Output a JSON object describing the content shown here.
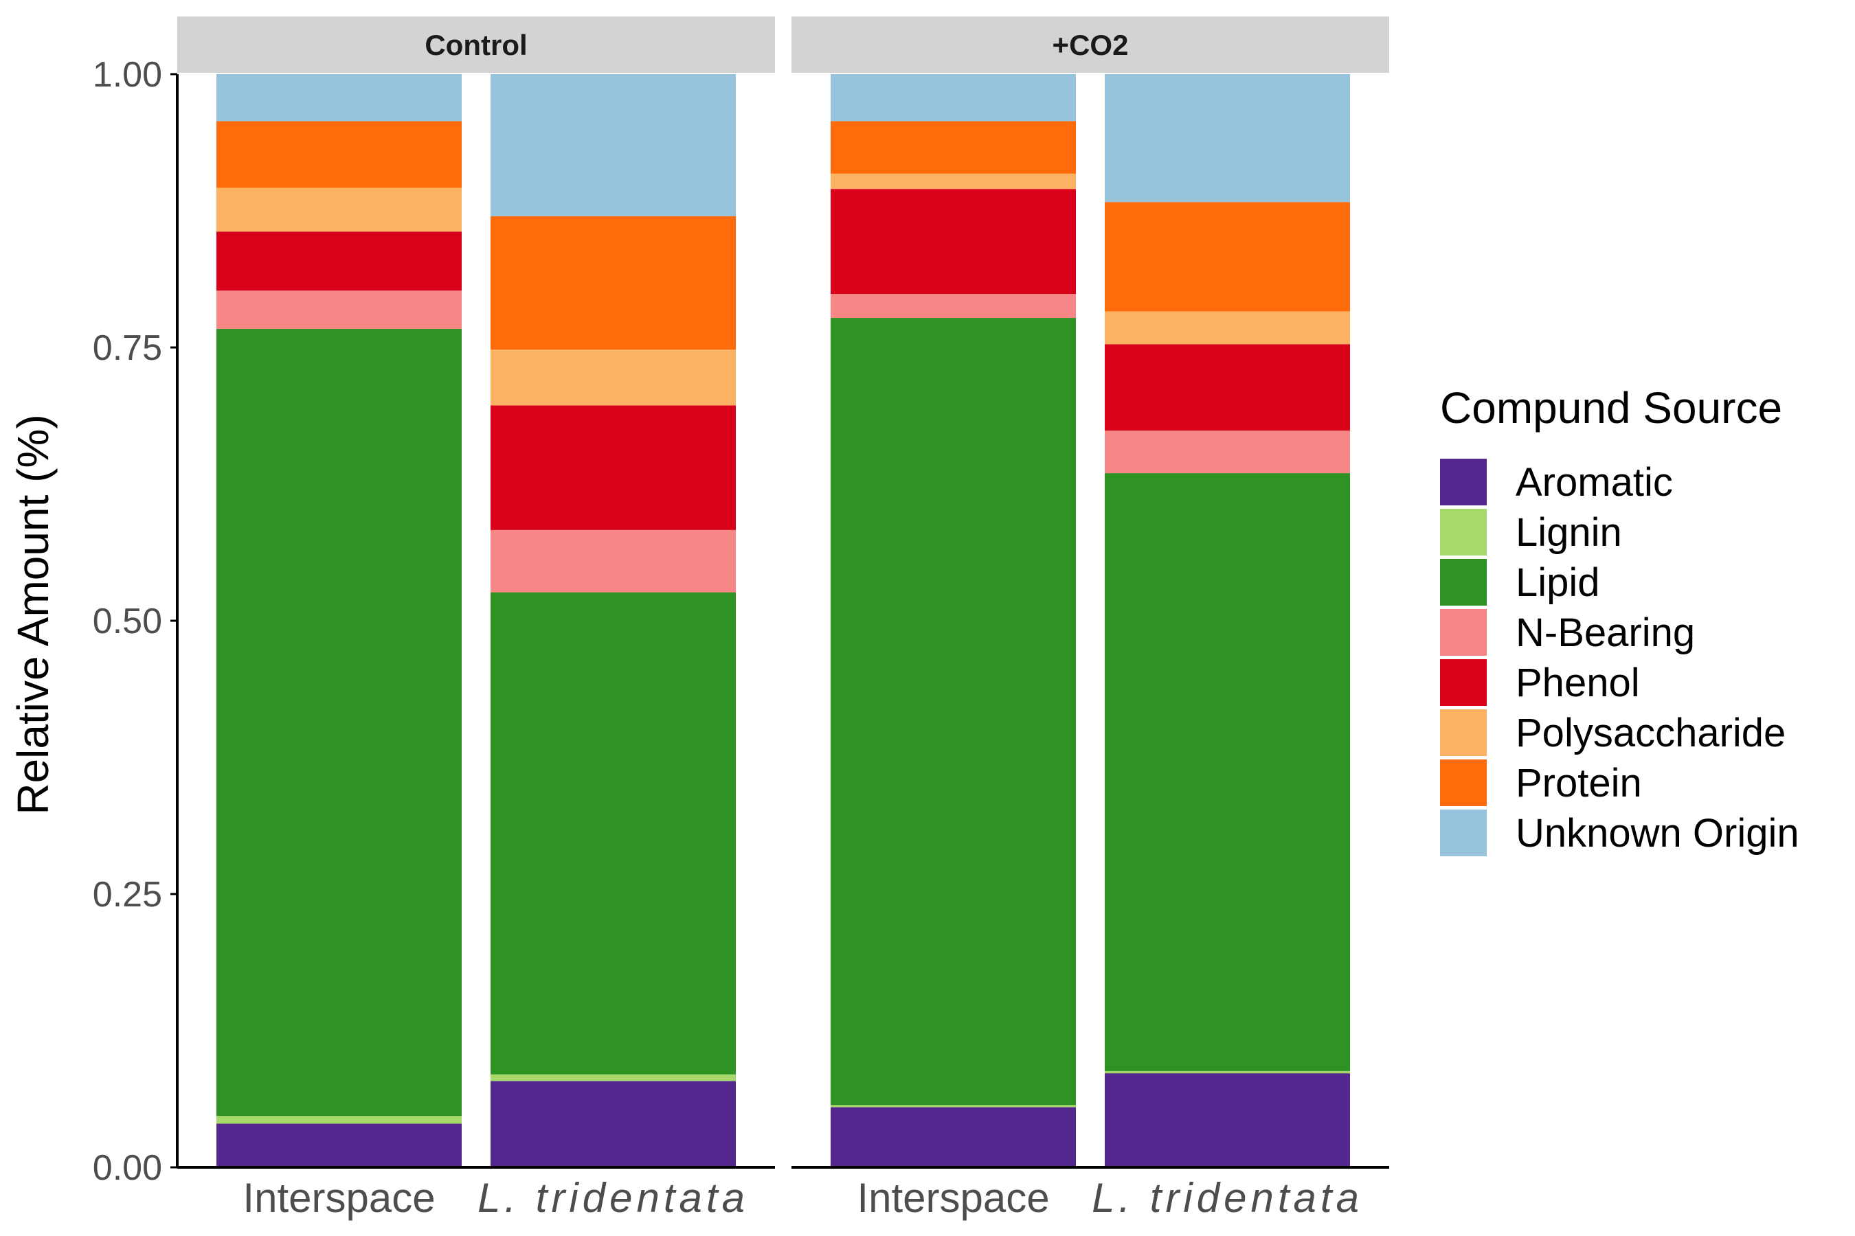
{
  "chart_data": {
    "type": "bar",
    "stacked": true,
    "ylabel": "Relative Amount (%)",
    "ylim": [
      0,
      1
    ],
    "y_ticks": [
      "0.00",
      "0.25",
      "0.50",
      "0.75",
      "1.00"
    ],
    "y_tick_values": [
      0,
      0.25,
      0.5,
      0.75,
      1.0
    ],
    "grid": false,
    "legend": {
      "title": "Compund Source",
      "placement": "right"
    },
    "categories": [
      "Interspace",
      "L. tridentata"
    ],
    "category_italic": [
      false,
      true
    ],
    "facets": [
      {
        "label": "Control",
        "bars": [
          {
            "category": "Interspace",
            "values": {
              "Aromatic": 0.04,
              "Lignin": 0.007,
              "Lipid": 0.72,
              "N-Bearing": 0.035,
              "Phenol": 0.054,
              "Polysaccharide": 0.04,
              "Protein": 0.061,
              "Unknown Origin": 0.043
            }
          },
          {
            "category": "L. tridentata",
            "values": {
              "Aromatic": 0.079,
              "Lignin": 0.006,
              "Lipid": 0.441,
              "N-Bearing": 0.057,
              "Phenol": 0.114,
              "Polysaccharide": 0.051,
              "Protein": 0.122,
              "Unknown Origin": 0.13
            }
          }
        ]
      },
      {
        "label": "+CO2",
        "bars": [
          {
            "category": "Interspace",
            "values": {
              "Aromatic": 0.055,
              "Lignin": 0.002,
              "Lipid": 0.72,
              "N-Bearing": 0.022,
              "Phenol": 0.096,
              "Polysaccharide": 0.014,
              "Protein": 0.048,
              "Unknown Origin": 0.043
            }
          },
          {
            "category": "L. tridentata",
            "values": {
              "Aromatic": 0.086,
              "Lignin": 0.002,
              "Lipid": 0.547,
              "N-Bearing": 0.039,
              "Phenol": 0.079,
              "Polysaccharide": 0.03,
              "Protein": 0.1,
              "Unknown Origin": 0.117
            }
          }
        ]
      }
    ],
    "series": [
      {
        "name": "Aromatic",
        "color": "#54278f"
      },
      {
        "name": "Lignin",
        "color": "#a6d96a"
      },
      {
        "name": "Lipid",
        "color": "#2e9322"
      },
      {
        "name": "N-Bearing",
        "color": "#f78787"
      },
      {
        "name": "Phenol",
        "color": "#d9001a"
      },
      {
        "name": "Polysaccharide",
        "color": "#fbb262"
      },
      {
        "name": "Protein",
        "color": "#fd6b0b"
      },
      {
        "name": "Unknown Origin",
        "color": "#97c4dc"
      }
    ],
    "colors": {
      "strip_background": "#d3d3d3",
      "axis": "#000000",
      "tick_text": "#4d4d4d"
    }
  }
}
